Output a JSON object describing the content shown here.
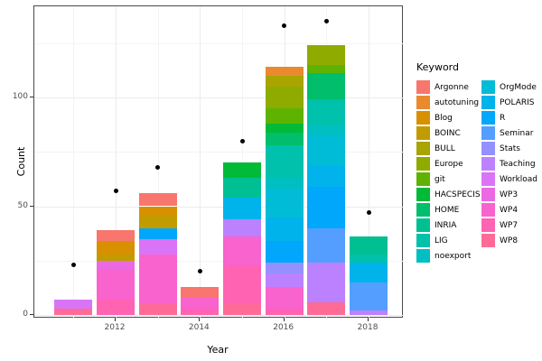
{
  "chart_data": {
    "type": "bar",
    "stacked": true,
    "title": "",
    "xlabel": "Year",
    "ylabel": "Count",
    "legend_title": "Keyword",
    "legend_position": "right",
    "grid": true,
    "x_ticks": [
      "2012",
      "2014",
      "2016",
      "2018"
    ],
    "y_ticks": [
      "0",
      "50",
      "100"
    ],
    "xlim": [
      2010.55,
      2018.75
    ],
    "ylim": [
      0,
      143
    ],
    "point_color": "#000000",
    "keywords": [
      {
        "label": "Argonne",
        "color": "#F8766D"
      },
      {
        "label": "autotuning",
        "color": "#E98A2F"
      },
      {
        "label": "Blog",
        "color": "#D89000"
      },
      {
        "label": "BOINC",
        "color": "#C29B00"
      },
      {
        "label": "BULL",
        "color": "#A8A400"
      },
      {
        "label": "Europe",
        "color": "#8FAB00"
      },
      {
        "label": "git",
        "color": "#5EB300"
      },
      {
        "label": "HACSPECIS",
        "color": "#00BA38"
      },
      {
        "label": "HOME",
        "color": "#00BE6C"
      },
      {
        "label": "INRIA",
        "color": "#00C093"
      },
      {
        "label": "LIG",
        "color": "#00C1AC"
      },
      {
        "label": "noexport",
        "color": "#00BFC2"
      },
      {
        "label": "OrgMode",
        "color": "#00BCD6"
      },
      {
        "label": "POLARIS",
        "color": "#00B3EB"
      },
      {
        "label": "R",
        "color": "#00A7FA"
      },
      {
        "label": "Seminar",
        "color": "#549EFF"
      },
      {
        "label": "Stats",
        "color": "#9490FF"
      },
      {
        "label": "Teaching",
        "color": "#BC81FF"
      },
      {
        "label": "Workload",
        "color": "#D974F7"
      },
      {
        "label": "WP3",
        "color": "#EC69E4"
      },
      {
        "label": "WP4",
        "color": "#F863CE"
      },
      {
        "label": "WP7",
        "color": "#FF63B2"
      },
      {
        "label": "WP8",
        "color": "#FF6B97"
      }
    ],
    "years": [
      {
        "year": 2011,
        "dot": 23,
        "total": 7,
        "segments": [
          {
            "keyword": "Workload",
            "value": 4
          },
          {
            "keyword": "WP8",
            "value": 3
          }
        ]
      },
      {
        "year": 2012,
        "dot": 57,
        "total": 39,
        "segments": [
          {
            "keyword": "Argonne",
            "value": 5
          },
          {
            "keyword": "Blog",
            "value": 6
          },
          {
            "keyword": "BOINC",
            "value": 3
          },
          {
            "keyword": "WP3",
            "value": 4
          },
          {
            "keyword": "WP4",
            "value": 14
          },
          {
            "keyword": "WP7",
            "value": 7
          }
        ]
      },
      {
        "year": 2013,
        "dot": 68,
        "total": 56,
        "segments": [
          {
            "keyword": "Argonne",
            "value": 6
          },
          {
            "keyword": "Blog",
            "value": 4
          },
          {
            "keyword": "BOINC",
            "value": 6
          },
          {
            "keyword": "R",
            "value": 5
          },
          {
            "keyword": "Workload",
            "value": 7
          },
          {
            "keyword": "WP4",
            "value": 23
          },
          {
            "keyword": "WP8",
            "value": 5
          }
        ]
      },
      {
        "year": 2014,
        "dot": 20,
        "total": 13,
        "segments": [
          {
            "keyword": "Argonne",
            "value": 5
          },
          {
            "keyword": "WP4",
            "value": 5
          },
          {
            "keyword": "WP7",
            "value": 3
          }
        ]
      },
      {
        "year": 2015,
        "dot": 80,
        "total": 70,
        "segments": [
          {
            "keyword": "HACSPECIS",
            "value": 7
          },
          {
            "keyword": "INRIA",
            "value": 9
          },
          {
            "keyword": "POLARIS",
            "value": 10
          },
          {
            "keyword": "Teaching",
            "value": 8
          },
          {
            "keyword": "WP4",
            "value": 13
          },
          {
            "keyword": "WP7",
            "value": 18
          },
          {
            "keyword": "WP8",
            "value": 5
          }
        ]
      },
      {
        "year": 2016,
        "dot": 133,
        "total": 114,
        "segments": [
          {
            "keyword": "autotuning",
            "value": 4
          },
          {
            "keyword": "BULL",
            "value": 5
          },
          {
            "keyword": "Europe",
            "value": 10
          },
          {
            "keyword": "git",
            "value": 7
          },
          {
            "keyword": "HACSPECIS",
            "value": 4
          },
          {
            "keyword": "HOME",
            "value": 6
          },
          {
            "keyword": "LIG",
            "value": 15
          },
          {
            "keyword": "noexport",
            "value": 5
          },
          {
            "keyword": "OrgMode",
            "value": 13
          },
          {
            "keyword": "POLARIS",
            "value": 11
          },
          {
            "keyword": "R",
            "value": 10
          },
          {
            "keyword": "Stats",
            "value": 5
          },
          {
            "keyword": "Teaching",
            "value": 6
          },
          {
            "keyword": "WP4",
            "value": 10
          },
          {
            "keyword": "WP7",
            "value": 3
          }
        ]
      },
      {
        "year": 2017,
        "dot": 135,
        "total": 124,
        "segments": [
          {
            "keyword": "Europe",
            "value": 9
          },
          {
            "keyword": "git",
            "value": 4
          },
          {
            "keyword": "HOME",
            "value": 12
          },
          {
            "keyword": "LIG",
            "value": 12
          },
          {
            "keyword": "noexport",
            "value": 5
          },
          {
            "keyword": "OrgMode",
            "value": 13
          },
          {
            "keyword": "POLARIS",
            "value": 10
          },
          {
            "keyword": "R",
            "value": 19
          },
          {
            "keyword": "Seminar",
            "value": 16
          },
          {
            "keyword": "Teaching",
            "value": 18
          },
          {
            "keyword": "WP8",
            "value": 6
          }
        ]
      },
      {
        "year": 2018,
        "dot": 47,
        "total": 36,
        "segments": [
          {
            "keyword": "INRIA",
            "value": 8
          },
          {
            "keyword": "LIG",
            "value": 4
          },
          {
            "keyword": "POLARIS",
            "value": 9
          },
          {
            "keyword": "Seminar",
            "value": 13
          },
          {
            "keyword": "Teaching",
            "value": 2
          }
        ]
      }
    ]
  }
}
